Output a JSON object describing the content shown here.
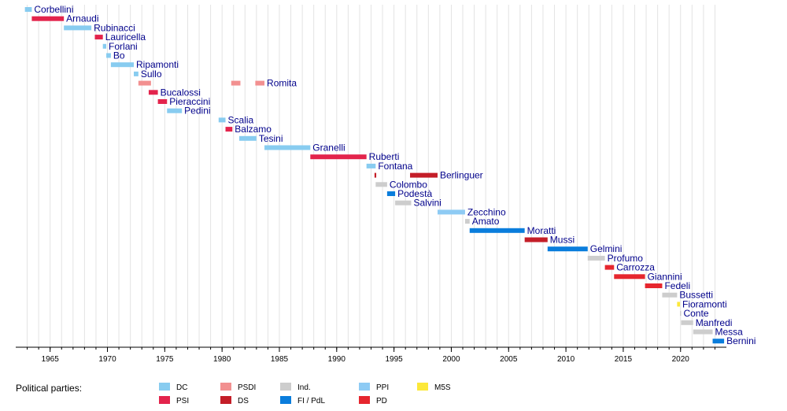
{
  "chart_data": {
    "type": "timeline",
    "xlim": [
      1962,
      2024
    ],
    "x_ticks": [
      1965,
      1970,
      1975,
      1980,
      1985,
      1990,
      1995,
      2000,
      2005,
      2010,
      2015,
      2020
    ],
    "grid": true,
    "legend_title": "Political parties:",
    "parties": [
      {
        "key": "DC",
        "name": "DC",
        "color": "#88ccf0"
      },
      {
        "key": "PSI",
        "name": "PSI",
        "color": "#e3244c"
      },
      {
        "key": "PSDI",
        "name": "PSDI",
        "color": "#f29090"
      },
      {
        "key": "DS",
        "name": "DS",
        "color": "#c41e28"
      },
      {
        "key": "IND",
        "name": "Ind.",
        "color": "#cdcdcd"
      },
      {
        "key": "FI",
        "name": "FI / PdL",
        "color": "#0a7ddc"
      },
      {
        "key": "PPI",
        "name": "PPI",
        "color": "#8ecbf4"
      },
      {
        "key": "PD",
        "name": "PD",
        "color": "#e6262e"
      },
      {
        "key": "M5S",
        "name": "M5S",
        "color": "#fce83a"
      }
    ],
    "ministers": [
      {
        "name": "Corbellini",
        "terms": [
          {
            "party": "DC",
            "start": 1962.8,
            "end": 1963.4
          }
        ]
      },
      {
        "name": "Arnaudi",
        "terms": [
          {
            "party": "PSI",
            "start": 1963.4,
            "end": 1966.2
          }
        ]
      },
      {
        "name": "Rubinacci",
        "terms": [
          {
            "party": "DC",
            "start": 1966.2,
            "end": 1968.6
          }
        ]
      },
      {
        "name": "Lauricella",
        "terms": [
          {
            "party": "PSI",
            "start": 1968.9,
            "end": 1969.6
          }
        ]
      },
      {
        "name": "Forlani",
        "terms": [
          {
            "party": "DC",
            "start": 1969.6,
            "end": 1969.9
          }
        ]
      },
      {
        "name": "Bo",
        "terms": [
          {
            "party": "DC",
            "start": 1969.9,
            "end": 1970.3
          }
        ]
      },
      {
        "name": "Ripamonti",
        "terms": [
          {
            "party": "DC",
            "start": 1970.3,
            "end": 1972.3
          }
        ]
      },
      {
        "name": "Sullo",
        "terms": [
          {
            "party": "DC",
            "start": 1972.3,
            "end": 1972.7
          }
        ]
      },
      {
        "name": "Romita",
        "terms": [
          {
            "party": "PSDI",
            "start": 1972.7,
            "end": 1973.8
          },
          {
            "party": "PSDI",
            "start": 1980.8,
            "end": 1981.6
          },
          {
            "party": "PSDI",
            "start": 1982.9,
            "end": 1983.7
          }
        ]
      },
      {
        "name": "Bucalossi",
        "terms": [
          {
            "party": "PSI",
            "start": 1973.6,
            "end": 1974.4
          }
        ]
      },
      {
        "name": "Pieraccini",
        "terms": [
          {
            "party": "PSI",
            "start": 1974.4,
            "end": 1975.2
          }
        ]
      },
      {
        "name": "Pedini",
        "terms": [
          {
            "party": "DC",
            "start": 1975.2,
            "end": 1976.5
          }
        ]
      },
      {
        "name": "Scalia",
        "terms": [
          {
            "party": "DC",
            "start": 1979.7,
            "end": 1980.3
          }
        ]
      },
      {
        "name": "Balzamo",
        "terms": [
          {
            "party": "PSI",
            "start": 1980.3,
            "end": 1980.9
          }
        ]
      },
      {
        "name": "Tesini",
        "terms": [
          {
            "party": "DC",
            "start": 1981.5,
            "end": 1983.0
          }
        ]
      },
      {
        "name": "Granelli",
        "terms": [
          {
            "party": "DC",
            "start": 1983.7,
            "end": 1987.7
          }
        ]
      },
      {
        "name": "Ruberti",
        "terms": [
          {
            "party": "PSI",
            "start": 1987.7,
            "end": 1992.6
          }
        ]
      },
      {
        "name": "Fontana",
        "terms": [
          {
            "party": "DC",
            "start": 1992.6,
            "end": 1993.4
          }
        ]
      },
      {
        "name": "Berlinguer",
        "terms": [
          {
            "party": "DS",
            "start": 1993.3,
            "end": 1993.45
          },
          {
            "party": "DS",
            "start": 1996.4,
            "end": 1998.8
          }
        ]
      },
      {
        "name": "Colombo",
        "terms": [
          {
            "party": "IND",
            "start": 1993.4,
            "end": 1994.4
          }
        ]
      },
      {
        "name": "Podestà",
        "terms": [
          {
            "party": "FI",
            "start": 1994.4,
            "end": 1995.1
          }
        ]
      },
      {
        "name": "Salvini",
        "terms": [
          {
            "party": "IND",
            "start": 1995.1,
            "end": 1996.5
          }
        ]
      },
      {
        "name": "Zecchino",
        "terms": [
          {
            "party": "PPI",
            "start": 1998.8,
            "end": 2001.2
          }
        ]
      },
      {
        "name": "Amato",
        "terms": [
          {
            "party": "IND",
            "start": 2001.2,
            "end": 2001.6
          }
        ]
      },
      {
        "name": "Moratti",
        "terms": [
          {
            "party": "FI",
            "start": 2001.6,
            "end": 2006.4
          }
        ]
      },
      {
        "name": "Mussi",
        "terms": [
          {
            "party": "DS",
            "start": 2006.4,
            "end": 2008.4
          }
        ]
      },
      {
        "name": "Gelmini",
        "terms": [
          {
            "party": "FI",
            "start": 2008.4,
            "end": 2011.9
          }
        ]
      },
      {
        "name": "Profumo",
        "terms": [
          {
            "party": "IND",
            "start": 2011.9,
            "end": 2013.4
          }
        ]
      },
      {
        "name": "Carrozza",
        "terms": [
          {
            "party": "PD",
            "start": 2013.4,
            "end": 2014.2
          }
        ]
      },
      {
        "name": "Giannini",
        "terms": [
          {
            "party": "PD",
            "start": 2014.2,
            "end": 2016.9
          }
        ]
      },
      {
        "name": "Fedeli",
        "terms": [
          {
            "party": "PD",
            "start": 2016.9,
            "end": 2018.4
          }
        ]
      },
      {
        "name": "Bussetti",
        "terms": [
          {
            "party": "IND",
            "start": 2018.4,
            "end": 2019.7
          }
        ]
      },
      {
        "name": "Fioramonti",
        "terms": [
          {
            "party": "M5S",
            "start": 2019.7,
            "end": 2019.95
          }
        ]
      },
      {
        "name": "Conte",
        "terms": [
          {
            "party": "IND",
            "start": 2019.95,
            "end": 2020.05
          }
        ]
      },
      {
        "name": "Manfredi",
        "terms": [
          {
            "party": "IND",
            "start": 2020.05,
            "end": 2021.1
          }
        ]
      },
      {
        "name": "Messa",
        "terms": [
          {
            "party": "IND",
            "start": 2021.1,
            "end": 2022.8
          }
        ]
      },
      {
        "name": "Bernini",
        "terms": [
          {
            "party": "FI",
            "start": 2022.8,
            "end": 2023.8
          }
        ]
      }
    ]
  }
}
